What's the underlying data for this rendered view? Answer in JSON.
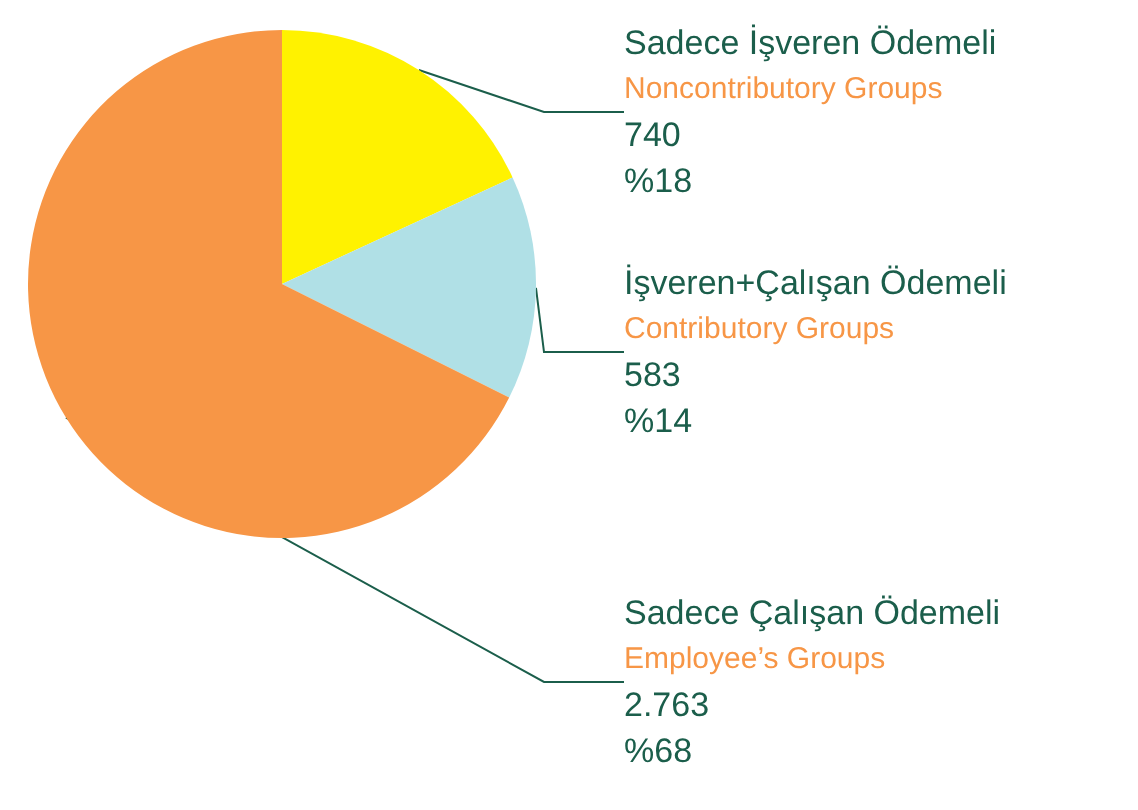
{
  "chart_data": {
    "type": "pie",
    "categories": [
      "Sadece İşveren Ödemeli\nNoncontributory Groups",
      "İşveren+Çalışan Ödemeli\nContributory Groups",
      "Sadece Çalışan Ödemeli\nEmployee’s Groups"
    ],
    "values": [
      740,
      583,
      2763
    ],
    "value_labels": [
      "740\n%18",
      "583\n%14",
      "2.763\n%68"
    ],
    "colors": [
      "#fff200",
      "#b0e0e6",
      "#f79646"
    ],
    "legend": false
  }
}
